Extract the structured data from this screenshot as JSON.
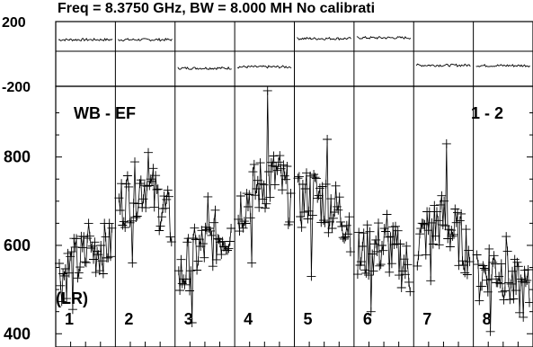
{
  "chart_data": [
    {
      "type": "line",
      "panel": "phase",
      "title": "Freq = 8.3750 GHz, BW = 8.000 MH   No calibrati",
      "ylim": [
        -200,
        200
      ],
      "yticks": [
        "200",
        "-200"
      ],
      "segments": [
        {
          "id": "1",
          "mean": 88
        },
        {
          "id": "2",
          "mean": 88
        },
        {
          "id": "3",
          "mean": -88
        },
        {
          "id": "4",
          "mean": -80
        },
        {
          "id": "5",
          "mean": 95
        },
        {
          "id": "6",
          "mean": 100
        },
        {
          "id": "7",
          "mean": -70
        },
        {
          "id": "8",
          "mean": -72
        }
      ]
    },
    {
      "type": "line",
      "panel": "amplitude",
      "label_left": "WB - EF",
      "label_right": "1 - 2",
      "polarization": "(LR)",
      "ylim": [
        370,
        960
      ],
      "yticks": [
        "800",
        "600",
        "400"
      ],
      "ytick_values": [
        800,
        600,
        400
      ],
      "segments": [
        {
          "id": "1",
          "center": [
            530,
            560,
            590,
            610
          ],
          "min": 455,
          "max": 650
        },
        {
          "id": "2",
          "center": [
            690,
            720,
            740,
            700,
            650
          ],
          "min": 560,
          "max": 810
        },
        {
          "id": "3",
          "center": [
            520,
            570,
            600,
            620,
            640
          ],
          "min": 425,
          "max": 710
        },
        {
          "id": "4",
          "center": [
            680,
            720,
            740,
            760,
            700
          ],
          "min": 560,
          "max": 950
        },
        {
          "id": "5",
          "center": [
            690,
            720,
            700,
            680,
            650
          ],
          "min": 530,
          "max": 840
        },
        {
          "id": "6",
          "center": [
            570,
            590,
            600,
            580,
            540
          ],
          "min": 450,
          "max": 670
        },
        {
          "id": "7",
          "center": [
            600,
            640,
            660,
            620,
            590
          ],
          "min": 520,
          "max": 830
        },
        {
          "id": "8",
          "center": [
            520,
            560,
            540,
            500,
            490
          ],
          "min": 405,
          "max": 620
        }
      ]
    }
  ]
}
